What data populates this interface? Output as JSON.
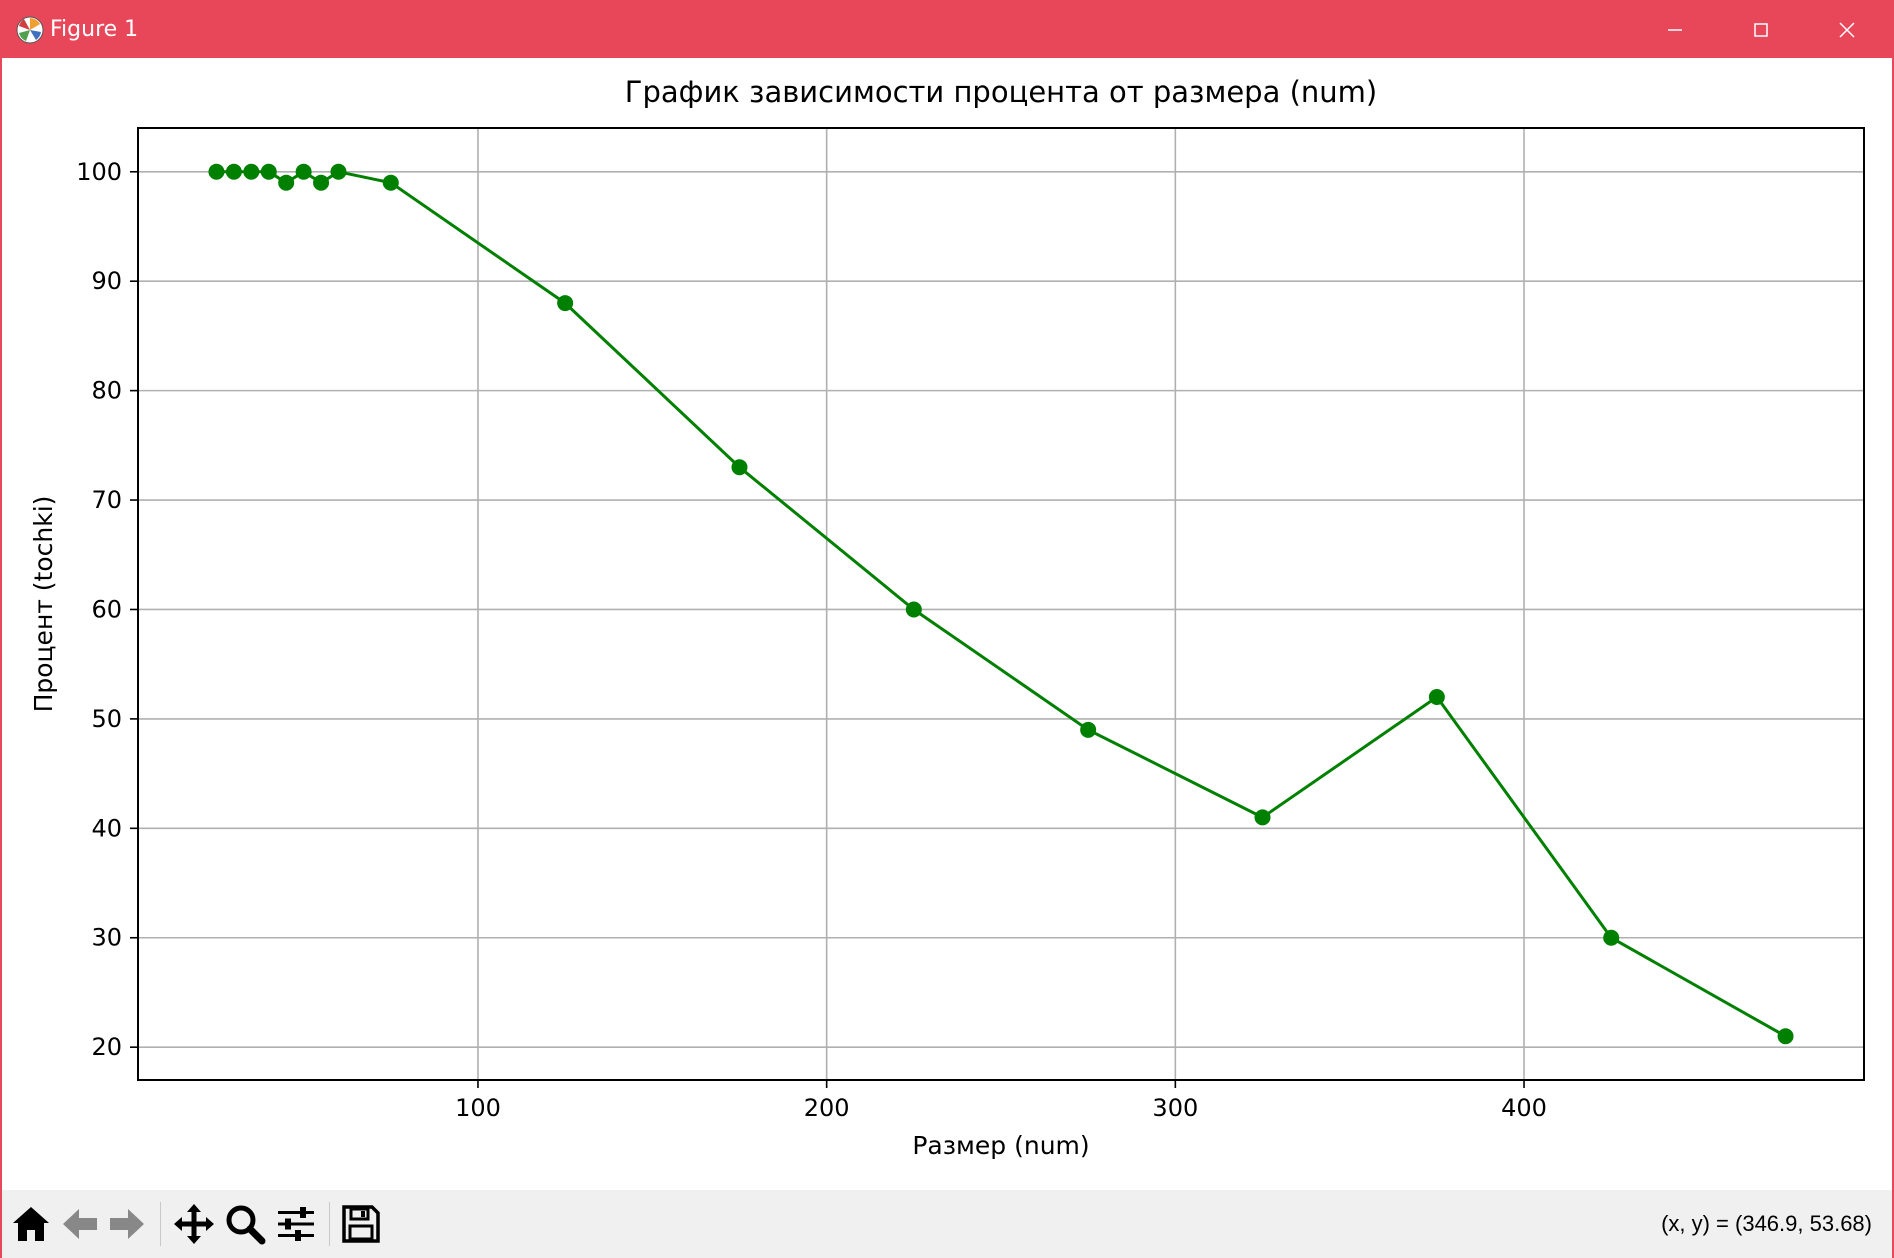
{
  "window": {
    "title": "Figure 1",
    "accent_color": "#e8475a",
    "controls": [
      "minimize-icon",
      "maximize-icon",
      "close-icon"
    ]
  },
  "toolbar": {
    "buttons": [
      "home-icon",
      "back-arrow-icon",
      "forward-arrow-icon",
      "pan-icon",
      "zoom-icon",
      "configure-subplots-icon",
      "save-icon"
    ],
    "coords": "(x, y) = (346.9, 53.68)"
  },
  "chart_data": {
    "type": "line",
    "title": "График зависимости процента от размера (num)",
    "xlabel": "Размер (num)",
    "ylabel": "Процент (tochki)",
    "x": [
      25,
      30,
      35,
      40,
      45,
      50,
      55,
      60,
      75,
      125,
      175,
      225,
      275,
      325,
      375,
      425,
      475
    ],
    "series": [
      {
        "values": [
          100,
          100,
          100,
          100,
          99,
          100,
          99,
          100,
          99,
          88,
          73,
          60,
          49,
          41,
          52,
          30,
          21
        ],
        "color": "#008000",
        "marker": "circle"
      }
    ],
    "xlim": [
      2.5,
      497.5
    ],
    "ylim": [
      17,
      104
    ],
    "xticks": [
      100,
      200,
      300,
      400
    ],
    "yticks": [
      20,
      30,
      40,
      50,
      60,
      70,
      80,
      90,
      100
    ],
    "grid": true
  }
}
